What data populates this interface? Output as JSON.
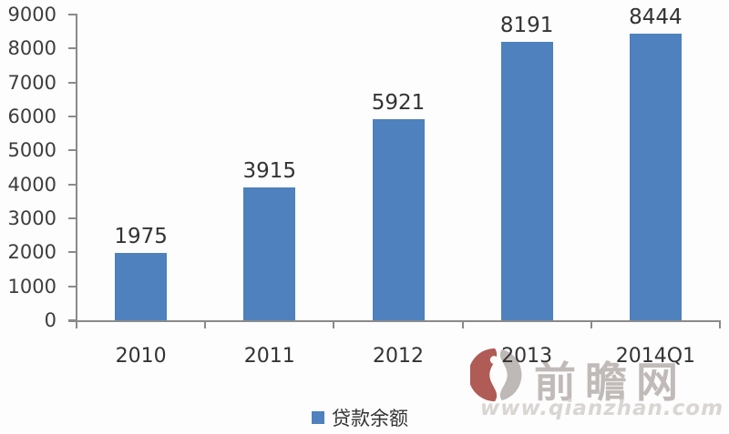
{
  "chart_data": {
    "type": "bar",
    "title": "",
    "categories": [
      "2010",
      "2011",
      "2012",
      "2013",
      "2014Q1"
    ],
    "values": [
      1975,
      3915,
      5921,
      8191,
      8444
    ],
    "series_name": "贷款余额",
    "data_labels": [
      "1975",
      "3915",
      "5921",
      "8191",
      "8444"
    ],
    "bar_color": "#4E81BD",
    "ylim": [
      0,
      9000
    ],
    "ytick_step": 1000,
    "yticks": [
      0,
      1000,
      2000,
      3000,
      4000,
      5000,
      6000,
      7000,
      8000,
      9000
    ],
    "xlabel": "",
    "ylabel": "",
    "grid": false,
    "legend_position": "bottom",
    "axis_color": "#8a8a8a",
    "label_color": "#333333"
  },
  "legend": {
    "label": "贷款余额",
    "marker_color": "#4E81BD"
  },
  "watermark": {
    "site_name": "前瞻网",
    "site_url": "www.qianzhan.com",
    "logo_red": "#a5443d",
    "logo_gray": "#b3acaa"
  }
}
